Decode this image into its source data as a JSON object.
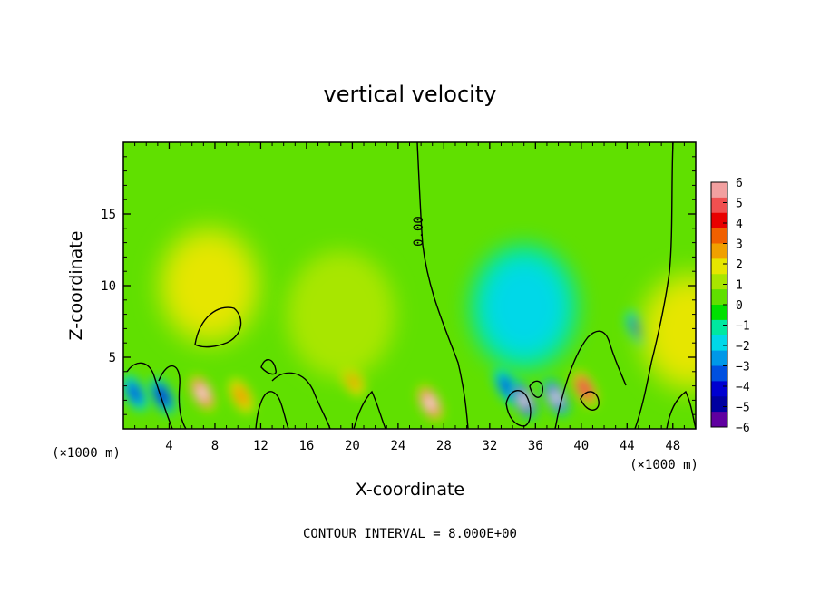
{
  "chart_data": {
    "type": "heatmap",
    "title": "vertical velocity",
    "xlabel": "X-coordinate",
    "ylabel": "Z-coordinate",
    "x_unit_left": "(×1000 m)",
    "x_unit_right": "(×1000 m)",
    "xlim": [
      0,
      50
    ],
    "ylim": [
      0,
      20
    ],
    "x_ticks": [
      "4",
      "8",
      "12",
      "16",
      "20",
      "24",
      "28",
      "32",
      "36",
      "40",
      "44",
      "48"
    ],
    "x_tick_values": [
      4,
      8,
      12,
      16,
      20,
      24,
      28,
      32,
      36,
      40,
      44,
      48
    ],
    "y_ticks": [
      "5",
      "10",
      "15"
    ],
    "y_tick_values": [
      5,
      10,
      15
    ],
    "contour_label": "0.00",
    "contour_interval_text": "CONTOUR INTERVAL = 8.000E+00",
    "colorbar": {
      "labels": [
        "6",
        "5",
        "4",
        "3",
        "2",
        "1",
        "0",
        "−1",
        "−2",
        "−3",
        "−4",
        "−5",
        "−6"
      ],
      "values": [
        6,
        5,
        4,
        3,
        2,
        1,
        0,
        -1,
        -2,
        -3,
        -4,
        -5,
        -6
      ],
      "band_colors": [
        "#f2a0a0",
        "#f05050",
        "#e80000",
        "#f06000",
        "#f0a000",
        "#e6e600",
        "#a8e600",
        "#60e000",
        "#00e000",
        "#00e8a0",
        "#00d8e8",
        "#0098e8",
        "#0050e0",
        "#0000d0",
        "#0000a0",
        "#6000a0"
      ]
    },
    "background_value": 0.5,
    "features": [
      {
        "x": 1.0,
        "z": 2.5,
        "value": -3
      },
      {
        "x": 3.4,
        "z": 2.3,
        "value": -3.5
      },
      {
        "x": 6.9,
        "z": 2.5,
        "value": 5
      },
      {
        "x": 10.3,
        "z": 2.3,
        "value": 3
      },
      {
        "x": 20.0,
        "z": 3.5,
        "value": 3
      },
      {
        "x": 26.8,
        "z": 1.8,
        "value": 5
      },
      {
        "x": 33.5,
        "z": 3.0,
        "value": -3
      },
      {
        "x": 35.0,
        "z": 2.0,
        "value": -6
      },
      {
        "x": 37.8,
        "z": 2.2,
        "value": -5
      },
      {
        "x": 40.3,
        "z": 2.8,
        "value": 4.5
      },
      {
        "x": 45.0,
        "z": 7.0,
        "value": -3
      },
      {
        "x": 49.5,
        "z": 6.8,
        "value": 2
      },
      {
        "x": 7.5,
        "z": 10.0,
        "value": 1.5
      },
      {
        "x": 19.0,
        "z": 8.0,
        "value": 1.2
      },
      {
        "x": 35.0,
        "z": 8.5,
        "value": -1.5
      }
    ]
  }
}
